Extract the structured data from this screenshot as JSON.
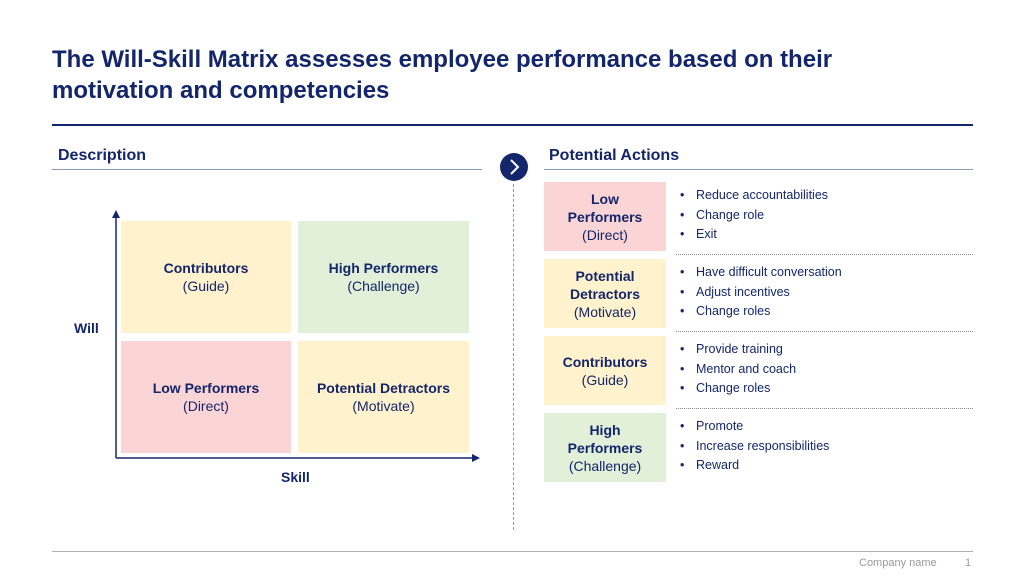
{
  "title": "The Will-Skill Matrix assesses employee performance based on their motivation and competencies",
  "description": {
    "heading": "Description",
    "matrix": {
      "y_axis_label": "Will",
      "x_axis_label": "Skill",
      "quadrants": {
        "top_left": {
          "name": "Contributors",
          "role": "(Guide)",
          "color": "#fff2cc"
        },
        "top_right": {
          "name": "High Performers",
          "role": "(Challenge)",
          "color": "#e2f0d9"
        },
        "bottom_left": {
          "name": "Low Performers",
          "role": "(Direct)",
          "color": "#fbd5d5"
        },
        "bottom_right": {
          "name": "Potential Detractors",
          "role": "(Motivate)",
          "color": "#fff2cc"
        }
      }
    }
  },
  "actions": {
    "heading": "Potential Actions",
    "groups": [
      {
        "name": "Low Performers",
        "role": "(Direct)",
        "color": "#fbd5d5",
        "items": [
          "Reduce accountabilities",
          "Change role",
          "Exit"
        ]
      },
      {
        "name": "Potential Detractors",
        "role": "(Motivate)",
        "color": "#fff2cc",
        "items": [
          "Have difficult conversation",
          "Adjust incentives",
          "Change roles"
        ]
      },
      {
        "name": "Contributors",
        "role": "(Guide)",
        "color": "#fff2cc",
        "items": [
          "Provide training",
          "Mentor and coach",
          "Change roles"
        ]
      },
      {
        "name": "High Performers",
        "role": "(Challenge)",
        "color": "#e2f0d9",
        "items": [
          "Promote",
          "Increase responsibilities",
          "Reward"
        ]
      }
    ]
  },
  "footer": {
    "company": "Company name",
    "page": "1"
  },
  "colors": {
    "brand": "#14266b",
    "pink": "#fbd5d5",
    "yellow": "#fff2cc",
    "green": "#e2f0d9"
  },
  "icons": {
    "section_arrow": "chevron-right-icon"
  }
}
